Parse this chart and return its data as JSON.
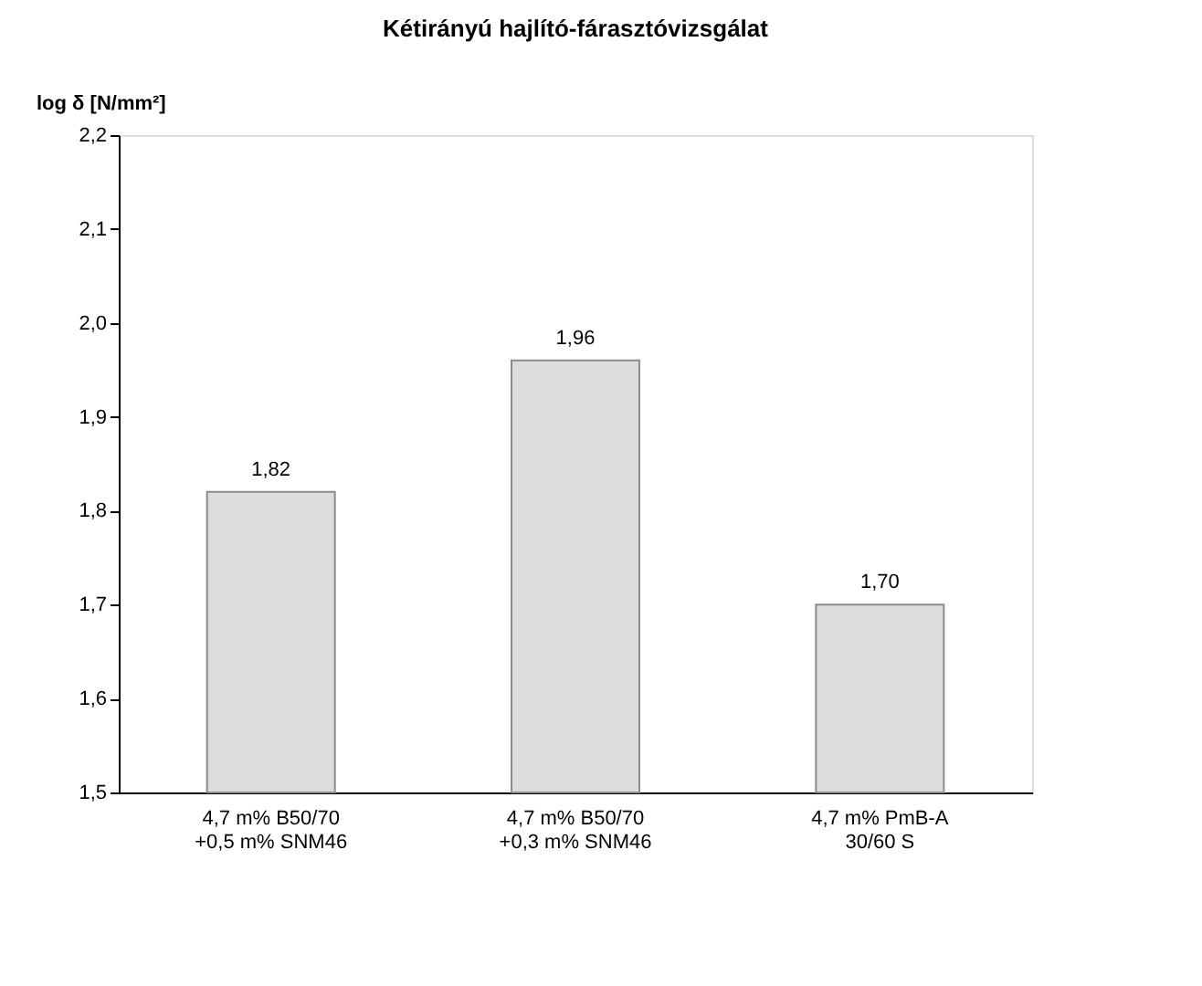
{
  "chart_data": {
    "type": "bar",
    "title": "Kétirányú hajlító-fárasztóvizsgálat",
    "ylabel": "log  δ [N/mm²]",
    "categories": [
      "4,7 m% B50/70\n+0,5 m% SNM46",
      "4,7 m% B50/70\n+0,3 m% SNM46",
      "4,7 m% PmB-A\n30/60 S"
    ],
    "values": [
      1.82,
      1.96,
      1.7
    ],
    "value_labels": [
      "1,82",
      "1,96",
      "1,70"
    ],
    "color": "#dcdcdc",
    "ylim": [
      1.5,
      2.2
    ],
    "yticks": [
      {
        "value": 1.5,
        "label": "1,5"
      },
      {
        "value": 1.6,
        "label": "1,6"
      },
      {
        "value": 1.7,
        "label": "1,7"
      },
      {
        "value": 1.8,
        "label": "1,8"
      },
      {
        "value": 1.9,
        "label": "1,9"
      },
      {
        "value": 2.0,
        "label": "2,0"
      },
      {
        "value": 2.1,
        "label": "2,1"
      },
      {
        "value": 2.2,
        "label": "2,2"
      }
    ],
    "grid": false
  }
}
